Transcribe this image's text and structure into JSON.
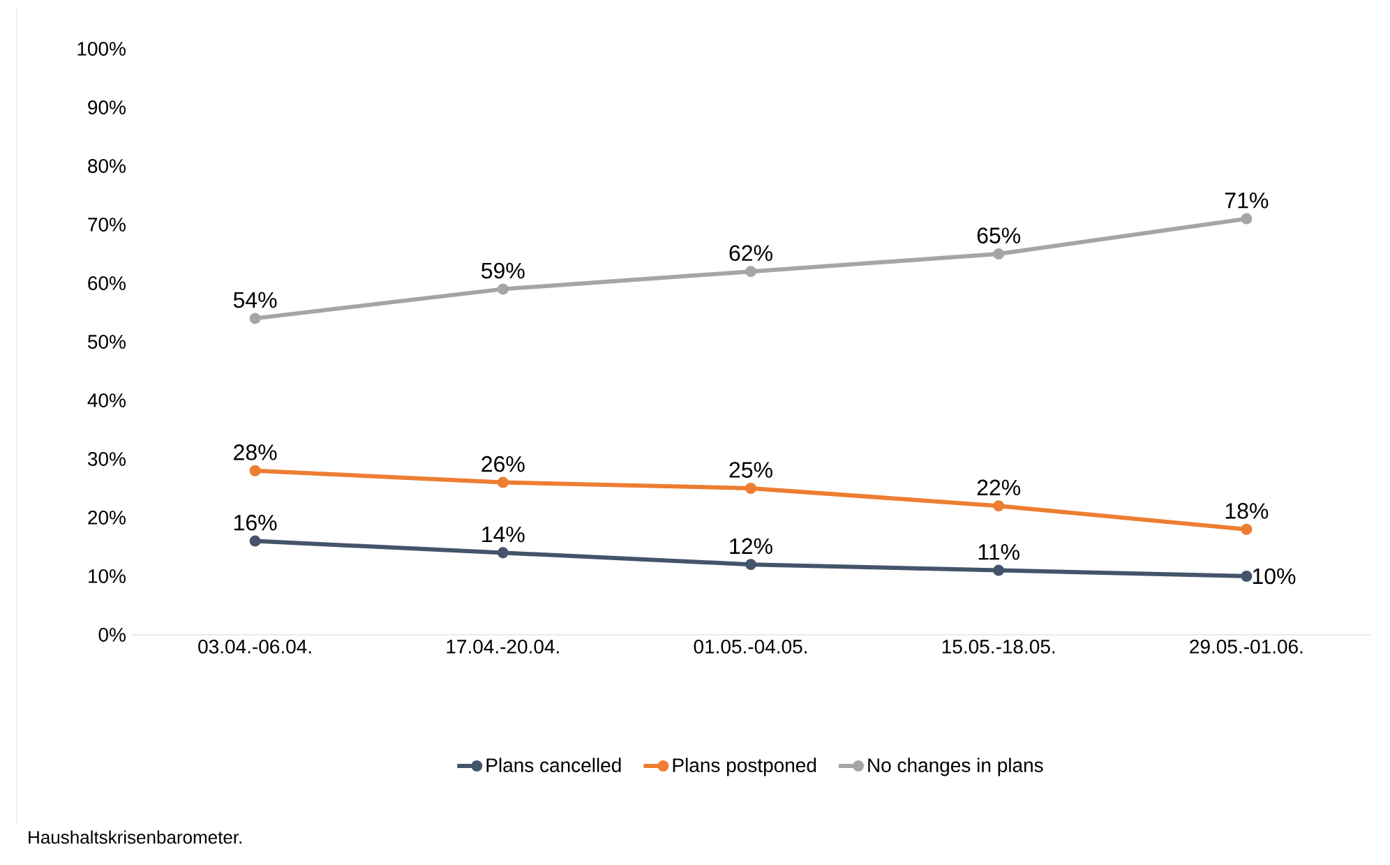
{
  "chart_data": {
    "type": "line",
    "categories": [
      "03.04.-06.04.",
      "17.04.-20.04.",
      "01.05.-04.05.",
      "15.05.-18.05.",
      "29.05.-01.06."
    ],
    "series": [
      {
        "name": "Plans cancelled",
        "color": "#44546a",
        "values": [
          16,
          14,
          12,
          11,
          10
        ],
        "value_labels": [
          "16%",
          "14%",
          "12%",
          "11%",
          "10%"
        ]
      },
      {
        "name": "Plans postponed",
        "color": "#ed7d31",
        "values": [
          28,
          26,
          25,
          22,
          18
        ],
        "value_labels": [
          "28%",
          "26%",
          "25%",
          "22%",
          "18%"
        ]
      },
      {
        "name": "No changes in plans",
        "color": "#a5a5a5",
        "values": [
          54,
          59,
          62,
          65,
          71
        ],
        "value_labels": [
          "54%",
          "59%",
          "62%",
          "65%",
          "71%"
        ]
      }
    ],
    "ylim": [
      0,
      100
    ],
    "yticks": [
      {
        "value": 0,
        "label": "0%"
      },
      {
        "value": 10,
        "label": "10%"
      },
      {
        "value": 20,
        "label": "20%"
      },
      {
        "value": 30,
        "label": "30%"
      },
      {
        "value": 40,
        "label": "40%"
      },
      {
        "value": 50,
        "label": "50%"
      },
      {
        "value": 60,
        "label": "60%"
      },
      {
        "value": 70,
        "label": "70%"
      },
      {
        "value": 80,
        "label": "80%"
      },
      {
        "value": 90,
        "label": "90%"
      },
      {
        "value": 100,
        "label": "100%"
      }
    ],
    "grid": false,
    "legend": "bottom",
    "marker": "circle",
    "line_style": "solid",
    "annotations": [
      "Haushaltskrisenbarometer."
    ]
  }
}
